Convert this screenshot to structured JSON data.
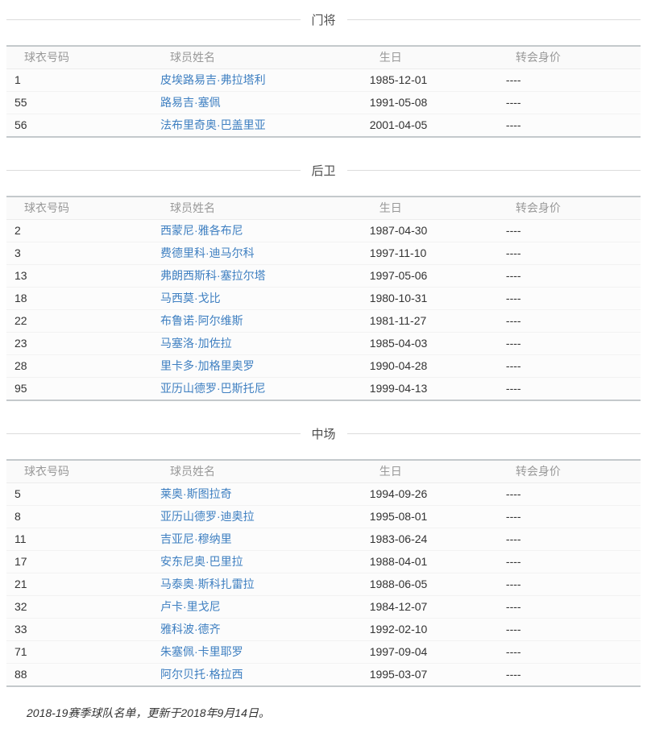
{
  "colors": {
    "link_blue": "#3e7fc1",
    "table_frame_gray": "#c4c9cc",
    "header_text_gray": "#999999",
    "divider_gray": "#dcdcdc"
  },
  "table_headers": [
    "球衣号码",
    "球员姓名",
    "生日",
    "转会身价"
  ],
  "sections": [
    {
      "title": "门将",
      "rows": [
        {
          "number": "1",
          "name": "皮埃路易吉·弗拉塔利",
          "birthday": "1985-12-01",
          "value": "----"
        },
        {
          "number": "55",
          "name": "路易吉·塞佩",
          "birthday": "1991-05-08",
          "value": "----"
        },
        {
          "number": "56",
          "name": "法布里奇奥·巴盖里亚",
          "birthday": "2001-04-05",
          "value": "----"
        }
      ]
    },
    {
      "title": "后卫",
      "rows": [
        {
          "number": "2",
          "name": "西蒙尼·雅各布尼",
          "birthday": "1987-04-30",
          "value": "----"
        },
        {
          "number": "3",
          "name": "费德里科·迪马尔科",
          "birthday": "1997-11-10",
          "value": "----"
        },
        {
          "number": "13",
          "name": "弗朗西斯科·塞拉尔塔",
          "birthday": "1997-05-06",
          "value": "----"
        },
        {
          "number": "18",
          "name": "马西莫·戈比",
          "birthday": "1980-10-31",
          "value": "----"
        },
        {
          "number": "22",
          "name": "布鲁诺·阿尔维斯",
          "birthday": "1981-11-27",
          "value": "----"
        },
        {
          "number": "23",
          "name": "马塞洛·加佐拉",
          "birthday": "1985-04-03",
          "value": "----"
        },
        {
          "number": "28",
          "name": "里卡多·加格里奥罗",
          "birthday": "1990-04-28",
          "value": "----"
        },
        {
          "number": "95",
          "name": "亚历山德罗·巴斯托尼",
          "birthday": "1999-04-13",
          "value": "----"
        }
      ]
    },
    {
      "title": "中场",
      "rows": [
        {
          "number": "5",
          "name": "莱奥·斯图拉奇",
          "birthday": "1994-09-26",
          "value": "----"
        },
        {
          "number": "8",
          "name": "亚历山德罗·迪奥拉",
          "birthday": "1995-08-01",
          "value": "----"
        },
        {
          "number": "11",
          "name": "吉亚尼·穆纳里",
          "birthday": "1983-06-24",
          "value": "----"
        },
        {
          "number": "17",
          "name": "安东尼奥·巴里拉",
          "birthday": "1988-04-01",
          "value": "----"
        },
        {
          "number": "21",
          "name": "马泰奥·斯科扎雷拉",
          "birthday": "1988-06-05",
          "value": "----"
        },
        {
          "number": "32",
          "name": "卢卡·里戈尼",
          "birthday": "1984-12-07",
          "value": "----"
        },
        {
          "number": "33",
          "name": "雅科波·德齐",
          "birthday": "1992-02-10",
          "value": "----"
        },
        {
          "number": "71",
          "name": "朱塞佩·卡里耶罗",
          "birthday": "1997-09-04",
          "value": "----"
        },
        {
          "number": "88",
          "name": "阿尔贝托·格拉西",
          "birthday": "1995-03-07",
          "value": "----"
        }
      ]
    }
  ],
  "footer": {
    "note": "2018-19赛季球队名单，更新于2018年9月14日。"
  }
}
